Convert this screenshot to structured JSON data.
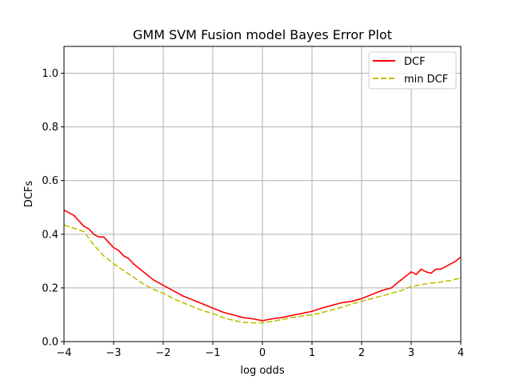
{
  "chart_data": {
    "type": "line",
    "title": "GMM SVM Fusion model Bayes Error Plot",
    "xlabel": "log odds",
    "ylabel": "DCFs",
    "xlim": [
      -4,
      4
    ],
    "ylim": [
      0,
      1.1
    ],
    "xticks": [
      "−4",
      "−3",
      "−2",
      "−1",
      "0",
      "1",
      "2",
      "3",
      "4"
    ],
    "yticks": [
      "0.0",
      "0.2",
      "0.4",
      "0.6",
      "0.8",
      "1.0"
    ],
    "grid": true,
    "legend_position": "top-right",
    "series": [
      {
        "name": "DCF",
        "color": "#ff0000",
        "style": "solid",
        "x": [
          -4.0,
          -3.8,
          -3.6,
          -3.5,
          -3.4,
          -3.3,
          -3.2,
          -3.0,
          -2.9,
          -2.8,
          -2.7,
          -2.6,
          -2.4,
          -2.2,
          -2.1,
          -2.0,
          -1.8,
          -1.6,
          -1.4,
          -1.2,
          -1.0,
          -0.8,
          -0.6,
          -0.4,
          -0.2,
          0.0,
          0.2,
          0.4,
          0.6,
          0.8,
          1.0,
          1.2,
          1.4,
          1.6,
          1.8,
          2.0,
          2.2,
          2.4,
          2.6,
          2.8,
          3.0,
          3.1,
          3.2,
          3.3,
          3.4,
          3.5,
          3.6,
          3.7,
          3.8,
          3.9,
          4.0
        ],
        "values": [
          0.49,
          0.47,
          0.43,
          0.42,
          0.4,
          0.39,
          0.39,
          0.35,
          0.34,
          0.32,
          0.31,
          0.29,
          0.26,
          0.23,
          0.22,
          0.21,
          0.19,
          0.17,
          0.155,
          0.14,
          0.125,
          0.11,
          0.1,
          0.09,
          0.085,
          0.078,
          0.085,
          0.09,
          0.098,
          0.105,
          0.113,
          0.125,
          0.135,
          0.145,
          0.15,
          0.16,
          0.175,
          0.19,
          0.2,
          0.23,
          0.26,
          0.25,
          0.27,
          0.26,
          0.255,
          0.27,
          0.27,
          0.28,
          0.29,
          0.3,
          0.315
        ]
      },
      {
        "name": "min DCF",
        "color": "#bfbf00",
        "style": "dashed",
        "x": [
          -4.0,
          -3.6,
          -3.4,
          -3.2,
          -3.0,
          -2.8,
          -2.6,
          -2.4,
          -2.2,
          -2.0,
          -1.8,
          -1.6,
          -1.4,
          -1.2,
          -1.0,
          -0.8,
          -0.6,
          -0.4,
          -0.2,
          0.0,
          0.2,
          0.4,
          0.6,
          0.8,
          1.0,
          1.2,
          1.4,
          1.6,
          1.8,
          2.0,
          2.2,
          2.4,
          2.6,
          2.8,
          3.0,
          3.2,
          3.4,
          3.6,
          3.8,
          4.0
        ],
        "values": [
          0.435,
          0.41,
          0.36,
          0.32,
          0.29,
          0.265,
          0.24,
          0.215,
          0.195,
          0.18,
          0.16,
          0.145,
          0.13,
          0.115,
          0.105,
          0.09,
          0.08,
          0.072,
          0.07,
          0.07,
          0.075,
          0.082,
          0.09,
          0.095,
          0.1,
          0.108,
          0.118,
          0.128,
          0.14,
          0.15,
          0.16,
          0.17,
          0.18,
          0.19,
          0.205,
          0.212,
          0.218,
          0.222,
          0.228,
          0.237
        ]
      }
    ]
  }
}
